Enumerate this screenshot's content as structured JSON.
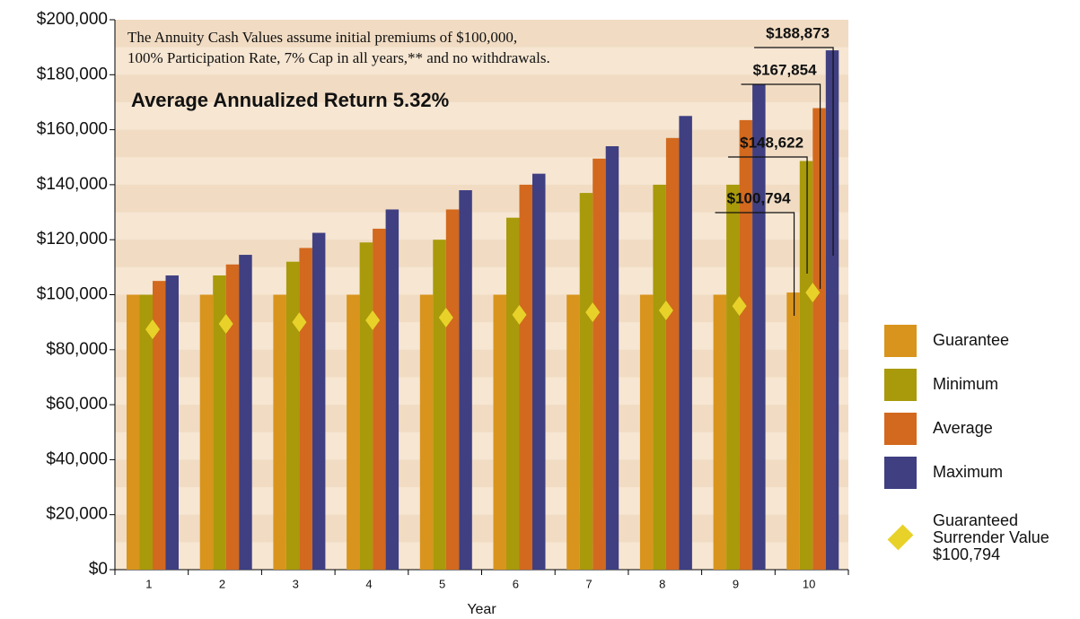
{
  "chart_data": {
    "type": "bar",
    "title": "Average Annualized Return 5.32%",
    "annotation": [
      "The Annuity Cash Values assume initial premiums of $100,000,",
      "100% Participation Rate, 7% Cap in all years,** and no withdrawals."
    ],
    "x_label": "Year",
    "categories": [
      "1",
      "2",
      "3",
      "4",
      "5",
      "6",
      "7",
      "8",
      "9",
      "10"
    ],
    "series": [
      {
        "name": "Guarantee",
        "color": "#d8941c",
        "values": [
          100000,
          100000,
          100000,
          100000,
          100000,
          100000,
          100000,
          100000,
          100000,
          100794
        ],
        "value_labels": [
          null,
          null,
          null,
          null,
          null,
          null,
          null,
          null,
          null,
          "$100,794"
        ]
      },
      {
        "name": "Minimum",
        "color": "#a89a0a",
        "values": [
          100000,
          107000,
          112000,
          119000,
          120000,
          128000,
          137000,
          140000,
          140000,
          148622
        ],
        "value_labels": [
          null,
          null,
          null,
          null,
          null,
          null,
          null,
          null,
          null,
          "$148,622"
        ]
      },
      {
        "name": "Average",
        "color": "#d2691e",
        "values": [
          105000,
          111000,
          117000,
          124000,
          131000,
          140000,
          149500,
          157000,
          163500,
          167854
        ],
        "value_labels": [
          null,
          null,
          null,
          null,
          null,
          null,
          null,
          null,
          null,
          "$167,854"
        ]
      },
      {
        "name": "Maximum",
        "color": "#3f3f82",
        "values": [
          107000,
          114500,
          122500,
          131000,
          138000,
          144000,
          154000,
          165000,
          176500,
          188873
        ],
        "value_labels": [
          null,
          null,
          null,
          null,
          null,
          null,
          null,
          null,
          null,
          "$188,873"
        ]
      },
      {
        "name": "Guaranteed Surrender Value $100,794",
        "color": "#e8d22a",
        "type": "diamond",
        "values": [
          87400,
          89400,
          90000,
          90700,
          91700,
          92700,
          93600,
          94300,
          95900,
          100794
        ]
      }
    ],
    "ylim": [
      0,
      200000
    ],
    "yticks": [
      {
        "value": 0,
        "label": "$0"
      },
      {
        "value": 20000,
        "label": "$20,000"
      },
      {
        "value": 40000,
        "label": "$40,000"
      },
      {
        "value": 60000,
        "label": "$60,000"
      },
      {
        "value": 80000,
        "label": "$80,000"
      },
      {
        "value": 100000,
        "label": "$100,000"
      },
      {
        "value": 120000,
        "label": "$120,000"
      },
      {
        "value": 140000,
        "label": "$140,000"
      },
      {
        "value": 160000,
        "label": "$160,000"
      },
      {
        "value": 180000,
        "label": "$180,000"
      },
      {
        "value": 200000,
        "label": "$200,000"
      }
    ],
    "legend": "right"
  }
}
